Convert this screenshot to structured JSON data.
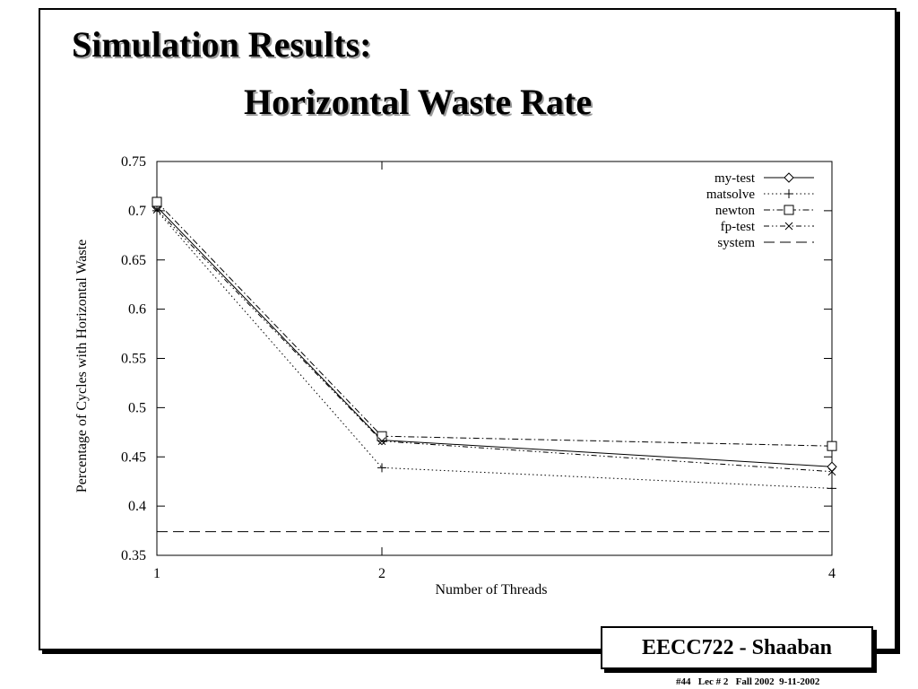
{
  "slide": {
    "title_line1": "Simulation Results:",
    "title_line2": "Horizontal Waste Rate",
    "badge": "EECC722 - Shaaban",
    "footer": "#44   Lec # 2   Fall 2002  9-11-2002"
  },
  "chart_data": {
    "type": "line",
    "xlabel": "Number of Threads",
    "ylabel": "Percentage of Cycles with Horizontal Waste",
    "x": [
      1,
      2,
      4
    ],
    "x_tick_labels": [
      "1",
      "2",
      "4"
    ],
    "y_ticks": [
      0.35,
      0.4,
      0.45,
      0.5,
      0.55,
      0.6,
      0.65,
      0.7,
      0.75
    ],
    "y_tick_labels": [
      "0.35",
      "0.4",
      "0.45",
      "0.5",
      "0.55",
      "0.6",
      "0.65",
      "0.7",
      "0.75"
    ],
    "ylim": [
      0.35,
      0.75
    ],
    "grid": false,
    "legend_position": "top-right",
    "series": [
      {
        "name": "my-test",
        "marker": "diamond",
        "dash": "solid",
        "values": [
          0.704,
          0.467,
          0.44
        ]
      },
      {
        "name": "matsolve",
        "marker": "plus",
        "dash": "dotted",
        "values": [
          0.7,
          0.439,
          0.418
        ]
      },
      {
        "name": "newton",
        "marker": "square",
        "dash": "dash-dot",
        "values": [
          0.709,
          0.471,
          0.461
        ]
      },
      {
        "name": "fp-test",
        "marker": "cross",
        "dash": "dash-dot-dot",
        "values": [
          0.701,
          0.466,
          0.435
        ]
      },
      {
        "name": "system",
        "marker": "none",
        "dash": "long-dash",
        "values": [
          0.374,
          0.374,
          0.374
        ]
      }
    ]
  }
}
